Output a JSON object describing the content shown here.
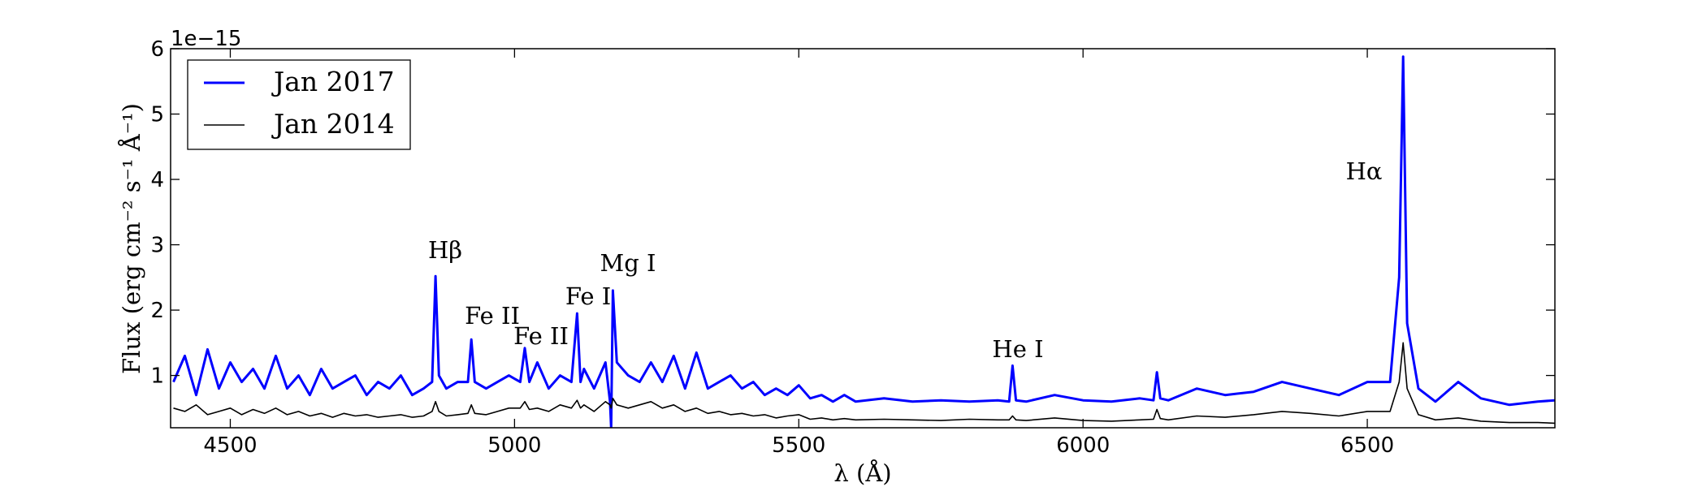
{
  "chart_data": {
    "type": "line",
    "offset_text": "1e−15",
    "x_label": "λ (Å)",
    "y_label": "Flux (erg cm⁻² s⁻¹ Å⁻¹)",
    "xlim": [
      4395,
      6830
    ],
    "ylim": [
      0.2,
      6
    ],
    "xticks": [
      4500,
      5000,
      5500,
      6000,
      6500
    ],
    "yticks": [
      1,
      2,
      3,
      4,
      5,
      6
    ],
    "legend": "upper left",
    "annotations": [
      "Hβ",
      "Fe II",
      "Fe II",
      "Fe I",
      "Mg I",
      "He I",
      "Hα"
    ],
    "x": [
      4400,
      4420,
      4440,
      4460,
      4480,
      4500,
      4520,
      4540,
      4560,
      4580,
      4600,
      4620,
      4640,
      4660,
      4680,
      4700,
      4720,
      4740,
      4760,
      4780,
      4800,
      4820,
      4840,
      4855,
      4861,
      4867,
      4880,
      4900,
      4918,
      4924,
      4930,
      4950,
      4970,
      4990,
      5010,
      5018,
      5026,
      5040,
      5060,
      5080,
      5100,
      5110,
      5116,
      5122,
      5140,
      5160,
      5168,
      5170,
      5173,
      5180,
      5200,
      5220,
      5240,
      5260,
      5280,
      5300,
      5320,
      5340,
      5360,
      5380,
      5400,
      5420,
      5440,
      5460,
      5480,
      5500,
      5520,
      5540,
      5560,
      5580,
      5600,
      5650,
      5700,
      5750,
      5800,
      5850,
      5870,
      5876,
      5882,
      5900,
      5950,
      6000,
      6050,
      6100,
      6124,
      6130,
      6136,
      6150,
      6200,
      6250,
      6300,
      6350,
      6400,
      6450,
      6500,
      6540,
      6556,
      6563,
      6570,
      6590,
      6620,
      6660,
      6700,
      6750,
      6800,
      6830
    ],
    "series": [
      {
        "name": "Jan 2017",
        "color": "#0000ff",
        "values": [
          0.9,
          1.3,
          0.7,
          1.4,
          0.8,
          1.2,
          0.9,
          1.1,
          0.8,
          1.3,
          0.8,
          1.0,
          0.7,
          1.1,
          0.8,
          0.9,
          1.0,
          0.7,
          0.9,
          0.8,
          1.0,
          0.7,
          0.8,
          0.9,
          2.52,
          1.0,
          0.8,
          0.9,
          0.9,
          1.55,
          0.9,
          0.8,
          0.9,
          1.0,
          0.9,
          1.42,
          0.9,
          1.2,
          0.8,
          1.0,
          0.9,
          1.95,
          0.9,
          1.1,
          0.8,
          1.2,
          0.6,
          0.2,
          2.3,
          1.2,
          1.0,
          0.9,
          1.2,
          0.9,
          1.3,
          0.8,
          1.35,
          0.8,
          0.9,
          1.0,
          0.8,
          0.9,
          0.7,
          0.8,
          0.7,
          0.85,
          0.65,
          0.7,
          0.6,
          0.7,
          0.6,
          0.65,
          0.6,
          0.62,
          0.6,
          0.62,
          0.6,
          1.15,
          0.62,
          0.6,
          0.7,
          0.62,
          0.6,
          0.65,
          0.62,
          1.05,
          0.65,
          0.62,
          0.8,
          0.7,
          0.75,
          0.9,
          0.8,
          0.7,
          0.9,
          0.9,
          2.5,
          5.88,
          1.8,
          0.8,
          0.6,
          0.9,
          0.65,
          0.55,
          0.6,
          0.62
        ]
      },
      {
        "name": "Jan 2014",
        "color": "#000000",
        "values": [
          0.5,
          0.45,
          0.55,
          0.4,
          0.45,
          0.5,
          0.4,
          0.48,
          0.42,
          0.5,
          0.4,
          0.45,
          0.38,
          0.42,
          0.36,
          0.42,
          0.38,
          0.4,
          0.36,
          0.38,
          0.4,
          0.36,
          0.38,
          0.45,
          0.6,
          0.45,
          0.38,
          0.4,
          0.42,
          0.55,
          0.42,
          0.4,
          0.45,
          0.5,
          0.5,
          0.6,
          0.48,
          0.5,
          0.45,
          0.55,
          0.5,
          0.62,
          0.5,
          0.55,
          0.45,
          0.6,
          0.55,
          0.5,
          0.65,
          0.55,
          0.5,
          0.55,
          0.6,
          0.5,
          0.55,
          0.45,
          0.5,
          0.42,
          0.45,
          0.4,
          0.42,
          0.38,
          0.4,
          0.35,
          0.38,
          0.4,
          0.33,
          0.35,
          0.32,
          0.34,
          0.32,
          0.33,
          0.32,
          0.31,
          0.33,
          0.32,
          0.32,
          0.38,
          0.32,
          0.31,
          0.35,
          0.31,
          0.3,
          0.32,
          0.33,
          0.48,
          0.34,
          0.32,
          0.38,
          0.36,
          0.4,
          0.45,
          0.42,
          0.38,
          0.45,
          0.45,
          0.9,
          1.5,
          0.8,
          0.4,
          0.32,
          0.35,
          0.3,
          0.28,
          0.28,
          0.27
        ]
      }
    ]
  }
}
